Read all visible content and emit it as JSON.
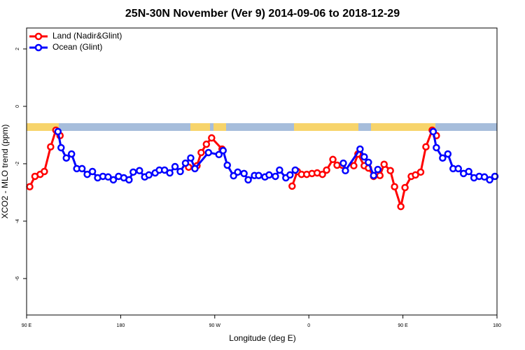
{
  "chart_data": {
    "type": "line",
    "title": "25N-30N November (Ver 9)   2014-09-06 to 2018-12-29",
    "x_label": "Longitude (deg E)",
    "y_label": "XCO2 - MLO trend (ppm)",
    "xlim": [
      90,
      540
    ],
    "xticks": [
      {
        "value": 90,
        "label": "90 E"
      },
      180,
      {
        "value": 270,
        "label": "90 W"
      },
      {
        "value": 360,
        "label": "0"
      },
      {
        "value": 450,
        "label": "90 E"
      },
      {
        "value": 540,
        "label": "180"
      }
    ],
    "ylim": [
      -7.27,
      2.73
    ],
    "yticks": [
      2,
      0,
      -2,
      -4,
      -6
    ],
    "legend": "top-left",
    "series": [
      {
        "name": "Land (Nadir&Glint)",
        "color": "#ff0000",
        "x": [
          93,
          98,
          103,
          107,
          113,
          118,
          122,
          200,
          245,
          253,
          257,
          262,
          267,
          277,
          300,
          344,
          349,
          353,
          358,
          363,
          368,
          373,
          377,
          383,
          387,
          392,
          397,
          403,
          407,
          413,
          417,
          422,
          428,
          432,
          438,
          442,
          448,
          452,
          458,
          462,
          467,
          472,
          478,
          482
        ],
        "values": [
          -2.8,
          -2.44,
          -2.37,
          -2.27,
          -1.41,
          -0.83,
          -1.02,
          null,
          -2.12,
          -2.07,
          -1.61,
          -1.32,
          -1.1,
          -1.49,
          null,
          -2.78,
          -2.27,
          -2.37,
          -2.37,
          -2.34,
          -2.32,
          -2.37,
          -2.22,
          -1.85,
          -2.05,
          -2.05,
          null,
          -2.07,
          -1.66,
          -2.07,
          -2.15,
          -2.44,
          -2.41,
          -2.02,
          -2.24,
          -2.8,
          -3.49,
          -2.83,
          -2.44,
          -2.39,
          -2.29,
          -1.41,
          -0.83,
          -1.02
        ]
      },
      {
        "name": "Ocean (Glint)",
        "color": "#0000ff",
        "x": [
          120,
          123,
          128,
          133,
          138,
          143,
          148,
          153,
          158,
          163,
          168,
          173,
          178,
          183,
          188,
          192,
          198,
          203,
          207,
          213,
          217,
          222,
          227,
          232,
          237,
          242,
          247,
          251,
          264,
          274,
          278,
          282,
          288,
          292,
          298,
          302,
          308,
          312,
          318,
          322,
          328,
          332,
          338,
          342,
          347,
          370,
          393,
          395,
          409,
          413,
          417,
          422,
          426,
          450,
          479,
          482,
          488,
          493,
          498,
          503,
          508,
          513,
          518,
          523,
          528,
          533,
          538
        ],
        "values": [
          -0.88,
          -1.44,
          -1.8,
          -1.66,
          -2.17,
          -2.17,
          -2.37,
          -2.27,
          -2.49,
          -2.44,
          -2.46,
          -2.56,
          -2.44,
          -2.49,
          -2.56,
          -2.29,
          -2.24,
          -2.46,
          -2.39,
          -2.32,
          -2.22,
          -2.22,
          -2.32,
          -2.1,
          -2.27,
          -1.98,
          -1.8,
          -2.17,
          -1.61,
          -1.68,
          -1.54,
          -2.05,
          -2.42,
          -2.29,
          -2.34,
          -2.56,
          -2.41,
          -2.41,
          -2.46,
          -2.39,
          -2.44,
          -2.22,
          -2.49,
          -2.39,
          -2.22,
          null,
          -1.98,
          -2.24,
          -1.49,
          -1.76,
          -1.95,
          -2.41,
          -2.2,
          null,
          -0.88,
          -1.44,
          -1.8,
          -1.66,
          -2.17,
          -2.17,
          -2.34,
          -2.27,
          -2.49,
          -2.44,
          -2.46,
          -2.56,
          -2.44
        ]
      }
    ]
  }
}
